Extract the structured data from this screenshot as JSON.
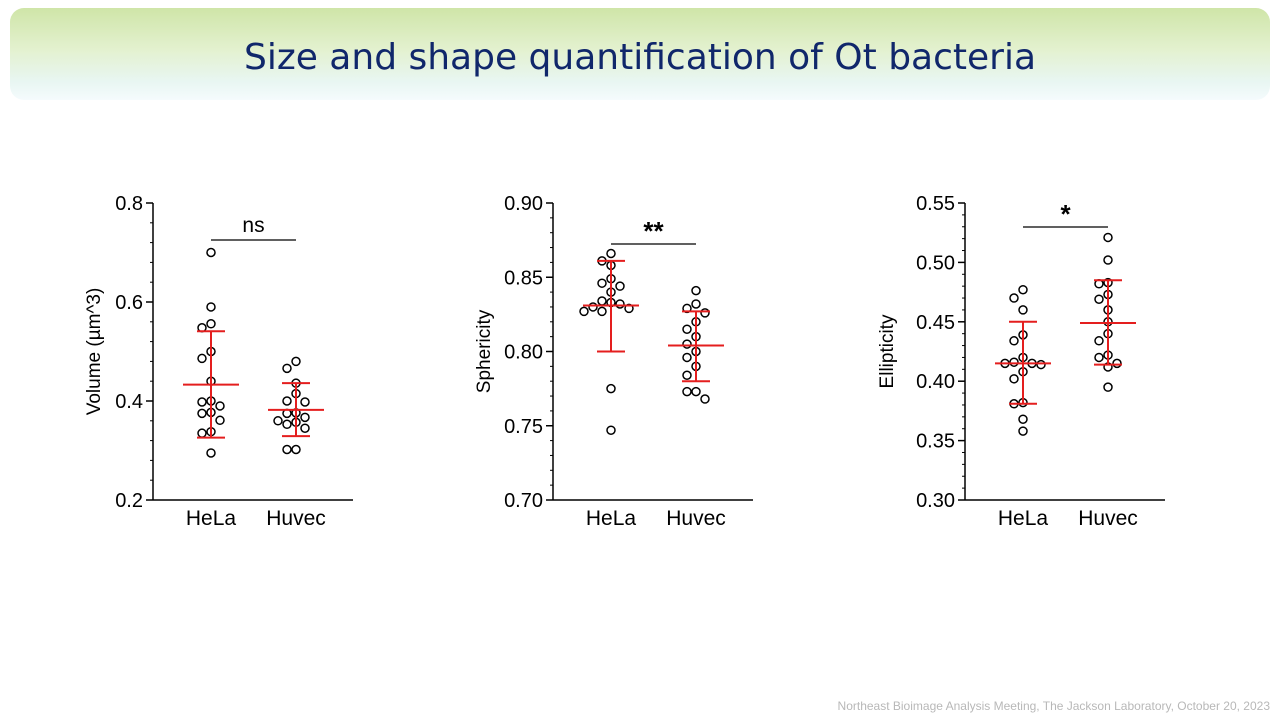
{
  "slide": {
    "title": "Size and shape quantification of Ot bacteria",
    "footer": "Northeast Bioimage Analysis Meeting, The Jackson Laboratory, October 20, 2023"
  },
  "colors": {
    "title": "#10276b",
    "mean_sd": "#e41e1e",
    "points": "#000000",
    "banner_top": "#cfe5a8",
    "banner_bottom": "#f5fbfd"
  },
  "chart_data": [
    {
      "type": "scatter",
      "ylabel": "Volume (µm^3)",
      "ylim": [
        0.2,
        0.8
      ],
      "yticks": [
        0.2,
        0.4,
        0.6,
        0.8
      ],
      "ytick_labels": [
        "0.2",
        "0.4",
        "0.6",
        "0.8"
      ],
      "categories": [
        "HeLa",
        "Huvec"
      ],
      "significance": "ns",
      "series": [
        {
          "values": [
            0.7,
            0.59,
            0.556,
            0.548,
            0.5,
            0.486,
            0.44,
            0.4,
            0.398,
            0.39,
            0.377,
            0.375,
            0.361,
            0.338,
            0.335,
            0.295
          ],
          "mean": 0.433,
          "sd_low": 0.326,
          "sd_high": 0.541
        },
        {
          "values": [
            0.48,
            0.466,
            0.436,
            0.415,
            0.4,
            0.398,
            0.376,
            0.375,
            0.367,
            0.36,
            0.357,
            0.353,
            0.345,
            0.302,
            0.302
          ],
          "mean": 0.382,
          "sd_low": 0.329,
          "sd_high": 0.436
        }
      ]
    },
    {
      "type": "scatter",
      "ylabel": "Sphericity",
      "ylim": [
        0.7,
        0.9
      ],
      "yticks": [
        0.7,
        0.75,
        0.8,
        0.85,
        0.9
      ],
      "ytick_labels": [
        "0.70",
        "0.75",
        "0.80",
        "0.85",
        "0.90"
      ],
      "categories": [
        "HeLa",
        "Huvec"
      ],
      "significance": "**",
      "series": [
        {
          "values": [
            0.866,
            0.861,
            0.858,
            0.849,
            0.846,
            0.844,
            0.84,
            0.834,
            0.833,
            0.832,
            0.83,
            0.829,
            0.827,
            0.827,
            0.775,
            0.747
          ],
          "mean": 0.831,
          "sd_low": 0.8,
          "sd_high": 0.861
        },
        {
          "values": [
            0.841,
            0.832,
            0.829,
            0.826,
            0.82,
            0.815,
            0.81,
            0.805,
            0.8,
            0.796,
            0.79,
            0.784,
            0.773,
            0.773,
            0.768
          ],
          "mean": 0.804,
          "sd_low": 0.78,
          "sd_high": 0.827
        }
      ]
    },
    {
      "type": "scatter",
      "ylabel": "Ellipticity",
      "ylim": [
        0.3,
        0.55
      ],
      "yticks": [
        0.3,
        0.35,
        0.4,
        0.45,
        0.5,
        0.55
      ],
      "ytick_labels": [
        "0.30",
        "0.35",
        "0.40",
        "0.45",
        "0.50",
        "0.55"
      ],
      "categories": [
        "HeLa",
        "Huvec"
      ],
      "significance": "*",
      "series": [
        {
          "values": [
            0.477,
            0.47,
            0.46,
            0.439,
            0.434,
            0.42,
            0.416,
            0.415,
            0.415,
            0.414,
            0.408,
            0.402,
            0.382,
            0.381,
            0.368,
            0.358
          ],
          "mean": 0.415,
          "sd_low": 0.381,
          "sd_high": 0.45
        },
        {
          "values": [
            0.521,
            0.502,
            0.483,
            0.482,
            0.473,
            0.469,
            0.46,
            0.45,
            0.44,
            0.434,
            0.422,
            0.42,
            0.415,
            0.412,
            0.395
          ],
          "mean": 0.449,
          "sd_low": 0.414,
          "sd_high": 0.485
        }
      ]
    }
  ]
}
